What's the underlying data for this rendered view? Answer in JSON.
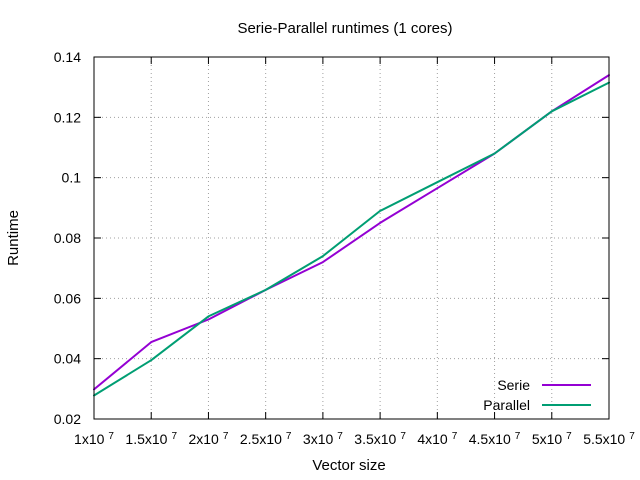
{
  "chart_data": {
    "type": "line",
    "title": "Serie-Parallel runtimes (1 cores)",
    "xlabel": "Vector size",
    "ylabel": "Runtime",
    "xlim": [
      10000000,
      55000000
    ],
    "ylim": [
      0.02,
      0.14
    ],
    "grid": true,
    "legend_position": "bottom-right",
    "x": [
      10000000,
      15000000,
      20000000,
      25000000,
      30000000,
      35000000,
      40000000,
      45000000,
      50000000,
      55000000
    ],
    "series": [
      {
        "name": "Serie",
        "color": "#9400d3",
        "values": [
          0.0298,
          0.0455,
          0.053,
          0.0628,
          0.072,
          0.085,
          0.0965,
          0.108,
          0.122,
          0.134
        ]
      },
      {
        "name": "Parallel",
        "color": "#009e73",
        "values": [
          0.0278,
          0.0395,
          0.054,
          0.0628,
          0.074,
          0.089,
          0.0985,
          0.108,
          0.122,
          0.1315
        ]
      }
    ],
    "x_ticks": [
      {
        "value": 10000000,
        "label": "1x10",
        "exp": "7"
      },
      {
        "value": 15000000,
        "label": "1.5x10",
        "exp": "7"
      },
      {
        "value": 20000000,
        "label": "2x10",
        "exp": "7"
      },
      {
        "value": 25000000,
        "label": "2.5x10",
        "exp": "7"
      },
      {
        "value": 30000000,
        "label": "3x10",
        "exp": "7"
      },
      {
        "value": 35000000,
        "label": "3.5x10",
        "exp": "7"
      },
      {
        "value": 40000000,
        "label": "4x10",
        "exp": "7"
      },
      {
        "value": 45000000,
        "label": "4.5x10",
        "exp": "7"
      },
      {
        "value": 50000000,
        "label": "5x10",
        "exp": "7"
      },
      {
        "value": 55000000,
        "label": "5.5x10",
        "exp": "7"
      }
    ],
    "y_ticks": [
      {
        "value": 0.02,
        "label": "0.02"
      },
      {
        "value": 0.04,
        "label": "0.04"
      },
      {
        "value": 0.06,
        "label": "0.06"
      },
      {
        "value": 0.08,
        "label": "0.08"
      },
      {
        "value": 0.1,
        "label": "0.1"
      },
      {
        "value": 0.12,
        "label": "0.12"
      },
      {
        "value": 0.14,
        "label": "0.14"
      }
    ]
  }
}
